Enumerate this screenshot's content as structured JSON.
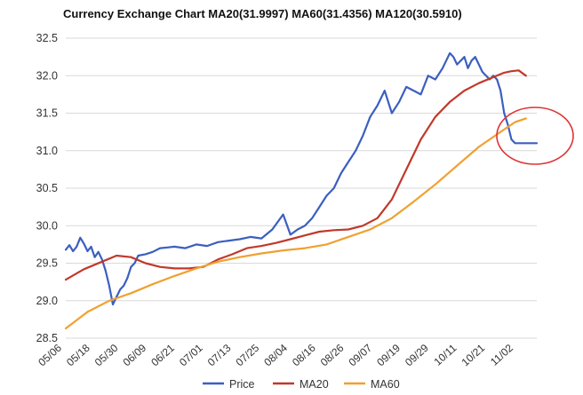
{
  "chart_data": {
    "type": "line",
    "title": "Currency Exchange Chart MA20(31.9997) MA60(31.4356) MA120(30.5910)",
    "ylim": [
      28.5,
      32.5
    ],
    "yticks": [
      "28.5",
      "29.0",
      "29.5",
      "30.0",
      "30.5",
      "31.0",
      "31.5",
      "32.0",
      "32.5"
    ],
    "categories": [
      "05/06",
      "05/18",
      "05/30",
      "06/09",
      "06/21",
      "07/01",
      "07/13",
      "07/25",
      "08/04",
      "08/16",
      "08/26",
      "09/07",
      "09/19",
      "09/29",
      "10/11",
      "10/21",
      "11/02"
    ],
    "grid": true,
    "legend_position": "bottom",
    "n_points": 131,
    "series": [
      {
        "name": "Price",
        "color": "#3b5fbf",
        "x": [
          0,
          1,
          2,
          3,
          4,
          5,
          6,
          7,
          8,
          9,
          10,
          11,
          12,
          13,
          14,
          15,
          16,
          17,
          18,
          19,
          20,
          22,
          24,
          26,
          28,
          30,
          33,
          36,
          39,
          42,
          45,
          48,
          51,
          54,
          57,
          60,
          62,
          64,
          66,
          68,
          70,
          72,
          74,
          76,
          78,
          80,
          82,
          84,
          86,
          88,
          90,
          92,
          94,
          96,
          98,
          100,
          102,
          104,
          105,
          106,
          107,
          108,
          110,
          111,
          112,
          113,
          114,
          115,
          116,
          117,
          118,
          119,
          120,
          121,
          122,
          123,
          124,
          125,
          126,
          127,
          128,
          129,
          130
        ],
        "values": [
          29.68,
          29.74,
          29.66,
          29.72,
          29.84,
          29.76,
          29.66,
          29.72,
          29.58,
          29.65,
          29.55,
          29.4,
          29.2,
          28.95,
          29.05,
          29.15,
          29.2,
          29.3,
          29.45,
          29.5,
          29.6,
          29.62,
          29.65,
          29.7,
          29.71,
          29.72,
          29.7,
          29.75,
          29.73,
          29.78,
          29.8,
          29.82,
          29.85,
          29.83,
          29.95,
          30.15,
          29.88,
          29.95,
          30.0,
          30.1,
          30.25,
          30.4,
          30.5,
          30.7,
          30.85,
          31.0,
          31.2,
          31.45,
          31.6,
          31.8,
          31.5,
          31.65,
          31.85,
          31.8,
          31.75,
          32.0,
          31.95,
          32.1,
          32.2,
          32.3,
          32.25,
          32.15,
          32.25,
          32.1,
          32.2,
          32.25,
          32.15,
          32.05,
          32.0,
          31.95,
          32.0,
          31.95,
          31.8,
          31.5,
          31.35,
          31.15,
          31.1,
          31.1,
          31.1,
          31.1,
          31.1,
          31.1,
          31.1
        ],
        "visible_points": 127
      },
      {
        "name": "MA20",
        "color": "#c0392b",
        "x": [
          0,
          5,
          10,
          14,
          18,
          22,
          26,
          30,
          34,
          38,
          42,
          46,
          50,
          54,
          58,
          62,
          66,
          70,
          74,
          78,
          82,
          86,
          90,
          94,
          98,
          102,
          106,
          110,
          114,
          118,
          121,
          123,
          125,
          127
        ],
        "values": [
          29.28,
          29.42,
          29.52,
          29.6,
          29.58,
          29.5,
          29.45,
          29.43,
          29.43,
          29.45,
          29.55,
          29.62,
          29.7,
          29.73,
          29.77,
          29.82,
          29.87,
          29.92,
          29.94,
          29.95,
          30.0,
          30.1,
          30.35,
          30.75,
          31.15,
          31.45,
          31.65,
          31.8,
          31.9,
          31.98,
          32.04,
          32.06,
          32.07,
          32.0
        ]
      },
      {
        "name": "MA60",
        "color": "#f0a030",
        "x": [
          0,
          6,
          12,
          18,
          24,
          30,
          36,
          42,
          48,
          54,
          60,
          66,
          72,
          78,
          84,
          90,
          96,
          102,
          108,
          114,
          120,
          124,
          127
        ],
        "values": [
          28.63,
          28.85,
          29.0,
          29.1,
          29.22,
          29.33,
          29.43,
          29.52,
          29.58,
          29.63,
          29.67,
          29.7,
          29.75,
          29.85,
          29.95,
          30.1,
          30.32,
          30.55,
          30.8,
          31.05,
          31.25,
          31.38,
          31.43
        ]
      }
    ],
    "annotation": {
      "type": "ellipse",
      "color": "#dd3333",
      "description": "red circle around latest drop"
    }
  }
}
